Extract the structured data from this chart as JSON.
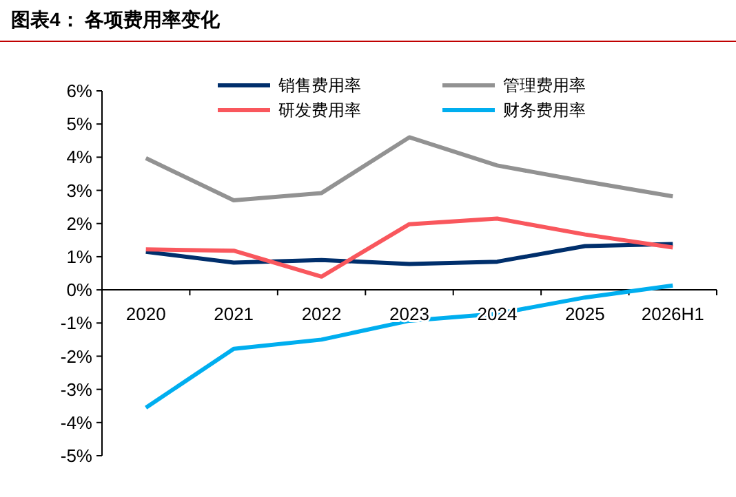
{
  "chart_data": {
    "type": "line",
    "title": "图表4：  各项费用率变化",
    "categories": [
      "2020",
      "2021",
      "2022",
      "2023",
      "2024",
      "2025",
      "2026H1"
    ],
    "series": [
      {
        "name": "销售费用率",
        "color": "#002f6c",
        "values": [
          1.15,
          0.82,
          0.9,
          0.78,
          0.85,
          1.32,
          1.38
        ]
      },
      {
        "name": "管理费用率",
        "color": "#929292",
        "values": [
          3.97,
          2.7,
          2.92,
          4.6,
          3.75,
          3.27,
          2.82
        ]
      },
      {
        "name": "研发费用率",
        "color": "#f9575d",
        "values": [
          1.22,
          1.18,
          0.4,
          1.98,
          2.15,
          1.67,
          1.28
        ]
      },
      {
        "name": "财务费用率",
        "color": "#00aeef",
        "values": [
          -3.55,
          -1.78,
          -1.5,
          -0.93,
          -0.72,
          -0.23,
          0.13
        ]
      }
    ],
    "ylim": [
      -5,
      6
    ],
    "yticks": [
      {
        "value": -5,
        "label": "-5%"
      },
      {
        "value": -4,
        "label": "-4%"
      },
      {
        "value": -3,
        "label": "-3%"
      },
      {
        "value": -2,
        "label": "-2%"
      },
      {
        "value": -1,
        "label": "-1%"
      },
      {
        "value": 0,
        "label": "0%"
      },
      {
        "value": 1,
        "label": "1%"
      },
      {
        "value": 2,
        "label": "2%"
      },
      {
        "value": 3,
        "label": "3%"
      },
      {
        "value": 4,
        "label": "4%"
      },
      {
        "value": 5,
        "label": "5%"
      },
      {
        "value": 6,
        "label": "6%"
      }
    ],
    "grid": false,
    "legend": "top",
    "marker": "none",
    "line_style": "solid"
  }
}
